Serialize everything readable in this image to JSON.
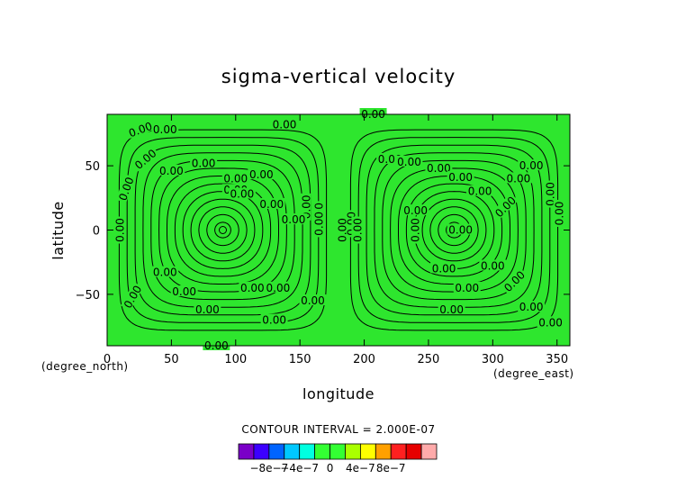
{
  "chart_data": {
    "type": "heatmap",
    "title": "sigma-vertical velocity",
    "xlabel": "longitude",
    "ylabel": "latitude",
    "x_unit": "(degree_east)",
    "y_unit": "(degree_north)",
    "xlim": [
      0,
      360
    ],
    "ylim": [
      -90,
      90
    ],
    "x_ticks": [
      0,
      50,
      100,
      150,
      200,
      250,
      300,
      350
    ],
    "y_ticks": [
      -50,
      0,
      50
    ],
    "x_tick_labels": [
      "0",
      "50",
      "100",
      "150",
      "200",
      "250",
      "300",
      "350"
    ],
    "y_tick_labels": [
      "−50",
      "0",
      "50"
    ],
    "fill_color": "#2ee62e",
    "contour_interval_text": "CONTOUR INTERVAL = 2.000E-07",
    "contour_label": "0.00",
    "vortices": [
      {
        "center_lon": 90,
        "center_lat": 0
      },
      {
        "center_lon": 270,
        "center_lat": 0
      }
    ],
    "colorbar": {
      "colors": [
        "#7a00c8",
        "#3c00ff",
        "#0064ff",
        "#00c8ff",
        "#00ffe0",
        "#33ff33",
        "#33ff33",
        "#aaff00",
        "#ffff00",
        "#ffa000",
        "#ff2020",
        "#e60000",
        "#ffaaaa"
      ],
      "tick_labels": [
        "−8e−7",
        "−4e−7",
        "0",
        "4e−7",
        "8e−7"
      ],
      "tick_values": [
        -8e-07,
        -4e-07,
        0,
        4e-07,
        8e-07
      ],
      "range": [
        -1.2e-06,
        1.4e-06
      ]
    }
  }
}
